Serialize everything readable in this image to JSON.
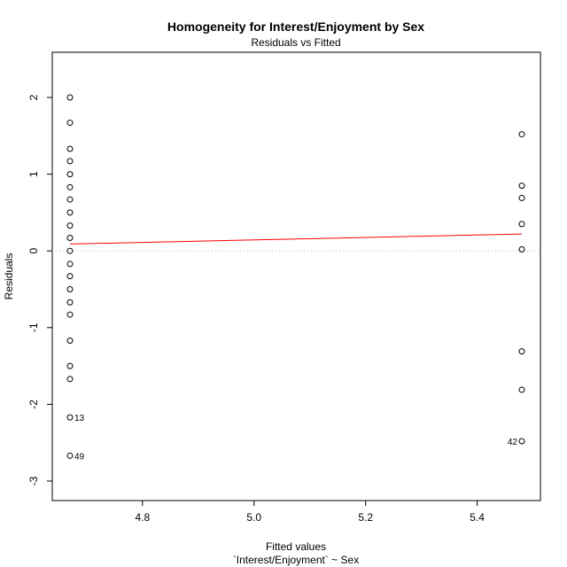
{
  "chart_data": {
    "type": "scatter",
    "title": "Homogeneity for Interest/Enjoyment by Sex",
    "subtitle": "Residuals vs Fitted",
    "xlabel": "Fitted values",
    "xlabel2": "`Interest/Enjoyment` ~ Sex",
    "ylabel": "Residuals",
    "xlim": [
      4.67,
      5.48
    ],
    "ylim": [
      -3.2,
      2.55
    ],
    "xticks": [
      "4.8",
      "5.0",
      "5.2",
      "5.4"
    ],
    "xtick_values": [
      4.8,
      5.0,
      5.2,
      5.4
    ],
    "yticks": [
      "-3",
      "-2",
      "-1",
      "0",
      "1",
      "2"
    ],
    "ytick_values": [
      -3,
      -2,
      -1,
      0,
      1,
      2
    ],
    "grid": false,
    "point_color": "#000000",
    "smooth_color": "#ff0000",
    "zero_line_color": "#bbbbbb",
    "series": [
      {
        "x_value": 4.67,
        "residuals": [
          2.0,
          1.67,
          1.33,
          1.17,
          1.0,
          0.83,
          0.67,
          0.5,
          0.33,
          0.17,
          0.0,
          -0.17,
          -0.33,
          -0.5,
          -0.67,
          -0.83,
          -1.17,
          -1.5,
          -1.67,
          -2.17,
          -2.67
        ]
      },
      {
        "x_value": 5.48,
        "residuals": [
          1.52,
          0.85,
          0.69,
          0.35,
          0.02,
          -1.31,
          -1.81,
          -2.48
        ]
      }
    ],
    "smooth_line": {
      "x": [
        4.67,
        5.48
      ],
      "y": [
        0.09,
        0.22
      ]
    },
    "labeled_points": [
      {
        "label": "13",
        "x": 4.67,
        "y": -2.17
      },
      {
        "label": "49",
        "x": 4.67,
        "y": -2.67
      },
      {
        "label": "42",
        "x": 5.48,
        "y": -2.48
      }
    ]
  }
}
